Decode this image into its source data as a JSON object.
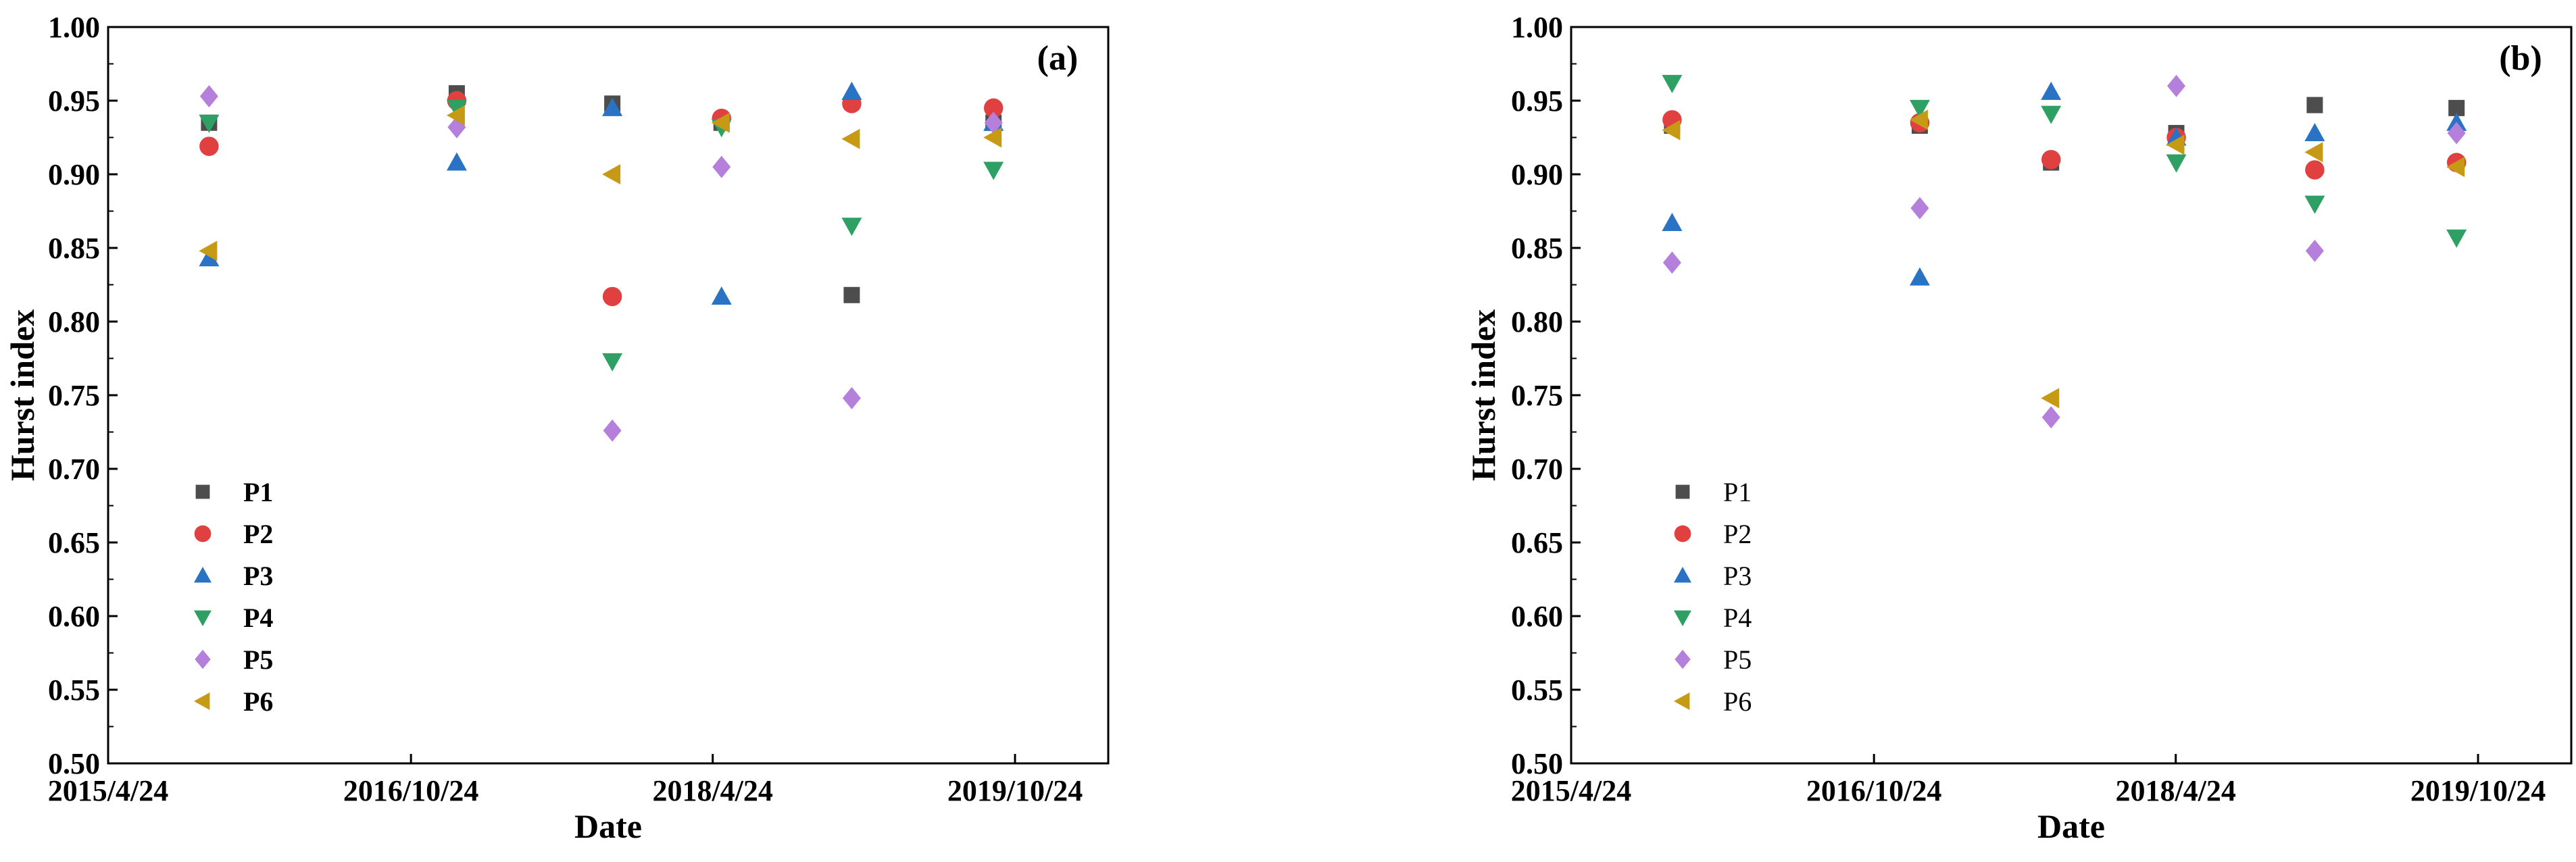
{
  "figure": {
    "title": ""
  },
  "chart_data": [
    {
      "type": "scatter",
      "panel_label": "(a)",
      "legend_bold": true,
      "xlabel": "Date",
      "ylabel": "Hurst index",
      "x_axis": {
        "kind": "date",
        "min": "2015-04-24",
        "max": "2020-04-10"
      },
      "xticks": [
        {
          "date": "2015-04-24",
          "label": "2015/4/24"
        },
        {
          "date": "2016-10-24",
          "label": "2016/10/24"
        },
        {
          "date": "2018-04-24",
          "label": "2018/4/24"
        },
        {
          "date": "2019-10-24",
          "label": "2019/10/24"
        }
      ],
      "ylim": [
        0.5,
        1.0
      ],
      "yticks": [
        "0.50",
        "0.55",
        "0.60",
        "0.65",
        "0.70",
        "0.75",
        "0.80",
        "0.85",
        "0.90",
        "0.95",
        "1.00"
      ],
      "grid": false,
      "legend_position": "bottom-left",
      "series": [
        {
          "name": "P1",
          "marker": "square",
          "color": "#4d4d4d",
          "points": [
            [
              "2015-10-24",
              0.935
            ],
            [
              "2017-01-15",
              0.955
            ],
            [
              "2017-10-24",
              0.948
            ],
            [
              "2018-05-10",
              0.935
            ],
            [
              "2019-01-01",
              0.818
            ],
            [
              "2019-09-15",
              0.935
            ]
          ]
        },
        {
          "name": "P2",
          "marker": "circle",
          "color": "#e04040",
          "points": [
            [
              "2015-10-24",
              0.919
            ],
            [
              "2017-01-15",
              0.95
            ],
            [
              "2017-10-24",
              0.817
            ],
            [
              "2018-05-10",
              0.938
            ],
            [
              "2019-01-01",
              0.948
            ],
            [
              "2019-09-15",
              0.945
            ]
          ]
        },
        {
          "name": "P3",
          "marker": "triangle-up",
          "color": "#2a72c4",
          "points": [
            [
              "2015-10-24",
              0.843
            ],
            [
              "2017-01-15",
              0.908
            ],
            [
              "2017-10-24",
              0.945
            ],
            [
              "2018-05-10",
              0.817
            ],
            [
              "2019-01-01",
              0.956
            ],
            [
              "2019-09-15",
              0.935
            ]
          ]
        },
        {
          "name": "P4",
          "marker": "triangle-down",
          "color": "#2fa063",
          "points": [
            [
              "2015-10-24",
              0.935
            ],
            [
              "2017-01-15",
              0.945
            ],
            [
              "2017-10-24",
              0.773
            ],
            [
              "2018-05-10",
              0.932
            ],
            [
              "2019-01-01",
              0.865
            ],
            [
              "2019-09-15",
              0.903
            ]
          ]
        },
        {
          "name": "P5",
          "marker": "diamond",
          "color": "#b57fdc",
          "points": [
            [
              "2015-10-24",
              0.953
            ],
            [
              "2017-01-15",
              0.932
            ],
            [
              "2017-10-24",
              0.726
            ],
            [
              "2018-05-10",
              0.905
            ],
            [
              "2019-01-01",
              0.748
            ],
            [
              "2019-09-15",
              0.935
            ]
          ]
        },
        {
          "name": "P6",
          "marker": "triangle-left",
          "color": "#c79a15",
          "points": [
            [
              "2015-10-24",
              0.848
            ],
            [
              "2017-01-15",
              0.94
            ],
            [
              "2017-10-24",
              0.9
            ],
            [
              "2018-05-10",
              0.935
            ],
            [
              "2019-01-01",
              0.924
            ],
            [
              "2019-09-15",
              0.925
            ]
          ]
        }
      ]
    },
    {
      "type": "scatter",
      "panel_label": "(b)",
      "legend_bold": false,
      "xlabel": "Date",
      "ylabel": "Hurst index",
      "x_axis": {
        "kind": "date",
        "min": "2015-04-24",
        "max": "2020-04-10"
      },
      "xticks": [
        {
          "date": "2015-04-24",
          "label": "2015/4/24"
        },
        {
          "date": "2016-10-24",
          "label": "2016/10/24"
        },
        {
          "date": "2018-04-24",
          "label": "2018/4/24"
        },
        {
          "date": "2019-10-24",
          "label": "2019/10/24"
        }
      ],
      "ylim": [
        0.5,
        1.0
      ],
      "yticks": [
        "0.50",
        "0.55",
        "0.60",
        "0.65",
        "0.70",
        "0.75",
        "0.80",
        "0.85",
        "0.90",
        "0.95",
        "1.00"
      ],
      "grid": false,
      "legend_position": "bottom-left",
      "series": [
        {
          "name": "P1",
          "marker": "square",
          "color": "#4d4d4d",
          "points": [
            [
              "2015-10-24",
              0.933
            ],
            [
              "2017-01-15",
              0.933
            ],
            [
              "2017-09-10",
              0.908
            ],
            [
              "2018-04-25",
              0.928
            ],
            [
              "2019-01-01",
              0.947
            ],
            [
              "2019-09-15",
              0.945
            ]
          ]
        },
        {
          "name": "P2",
          "marker": "circle",
          "color": "#e04040",
          "points": [
            [
              "2015-10-24",
              0.937
            ],
            [
              "2017-01-15",
              0.935
            ],
            [
              "2017-09-10",
              0.91
            ],
            [
              "2018-04-25",
              0.925
            ],
            [
              "2019-01-01",
              0.903
            ],
            [
              "2019-09-15",
              0.908
            ]
          ]
        },
        {
          "name": "P3",
          "marker": "triangle-up",
          "color": "#2a72c4",
          "points": [
            [
              "2015-10-24",
              0.867
            ],
            [
              "2017-01-15",
              0.83
            ],
            [
              "2017-09-10",
              0.956
            ],
            [
              "2018-04-25",
              0.925
            ],
            [
              "2019-01-01",
              0.928
            ],
            [
              "2019-09-15",
              0.935
            ]
          ]
        },
        {
          "name": "P4",
          "marker": "triangle-down",
          "color": "#2fa063",
          "points": [
            [
              "2015-10-24",
              0.962
            ],
            [
              "2017-01-15",
              0.945
            ],
            [
              "2017-09-10",
              0.941
            ],
            [
              "2018-04-25",
              0.908
            ],
            [
              "2019-01-01",
              0.88
            ],
            [
              "2019-09-15",
              0.857
            ]
          ]
        },
        {
          "name": "P5",
          "marker": "diamond",
          "color": "#b57fdc",
          "points": [
            [
              "2015-10-24",
              0.84
            ],
            [
              "2017-01-15",
              0.877
            ],
            [
              "2017-09-10",
              0.735
            ],
            [
              "2018-04-25",
              0.96
            ],
            [
              "2019-01-01",
              0.848
            ],
            [
              "2019-09-15",
              0.928
            ]
          ]
        },
        {
          "name": "P6",
          "marker": "triangle-left",
          "color": "#c79a15",
          "points": [
            [
              "2015-10-24",
              0.93
            ],
            [
              "2017-01-15",
              0.937
            ],
            [
              "2017-09-10",
              0.748
            ],
            [
              "2018-04-25",
              0.92
            ],
            [
              "2019-01-01",
              0.915
            ],
            [
              "2019-09-15",
              0.905
            ]
          ]
        }
      ]
    }
  ]
}
